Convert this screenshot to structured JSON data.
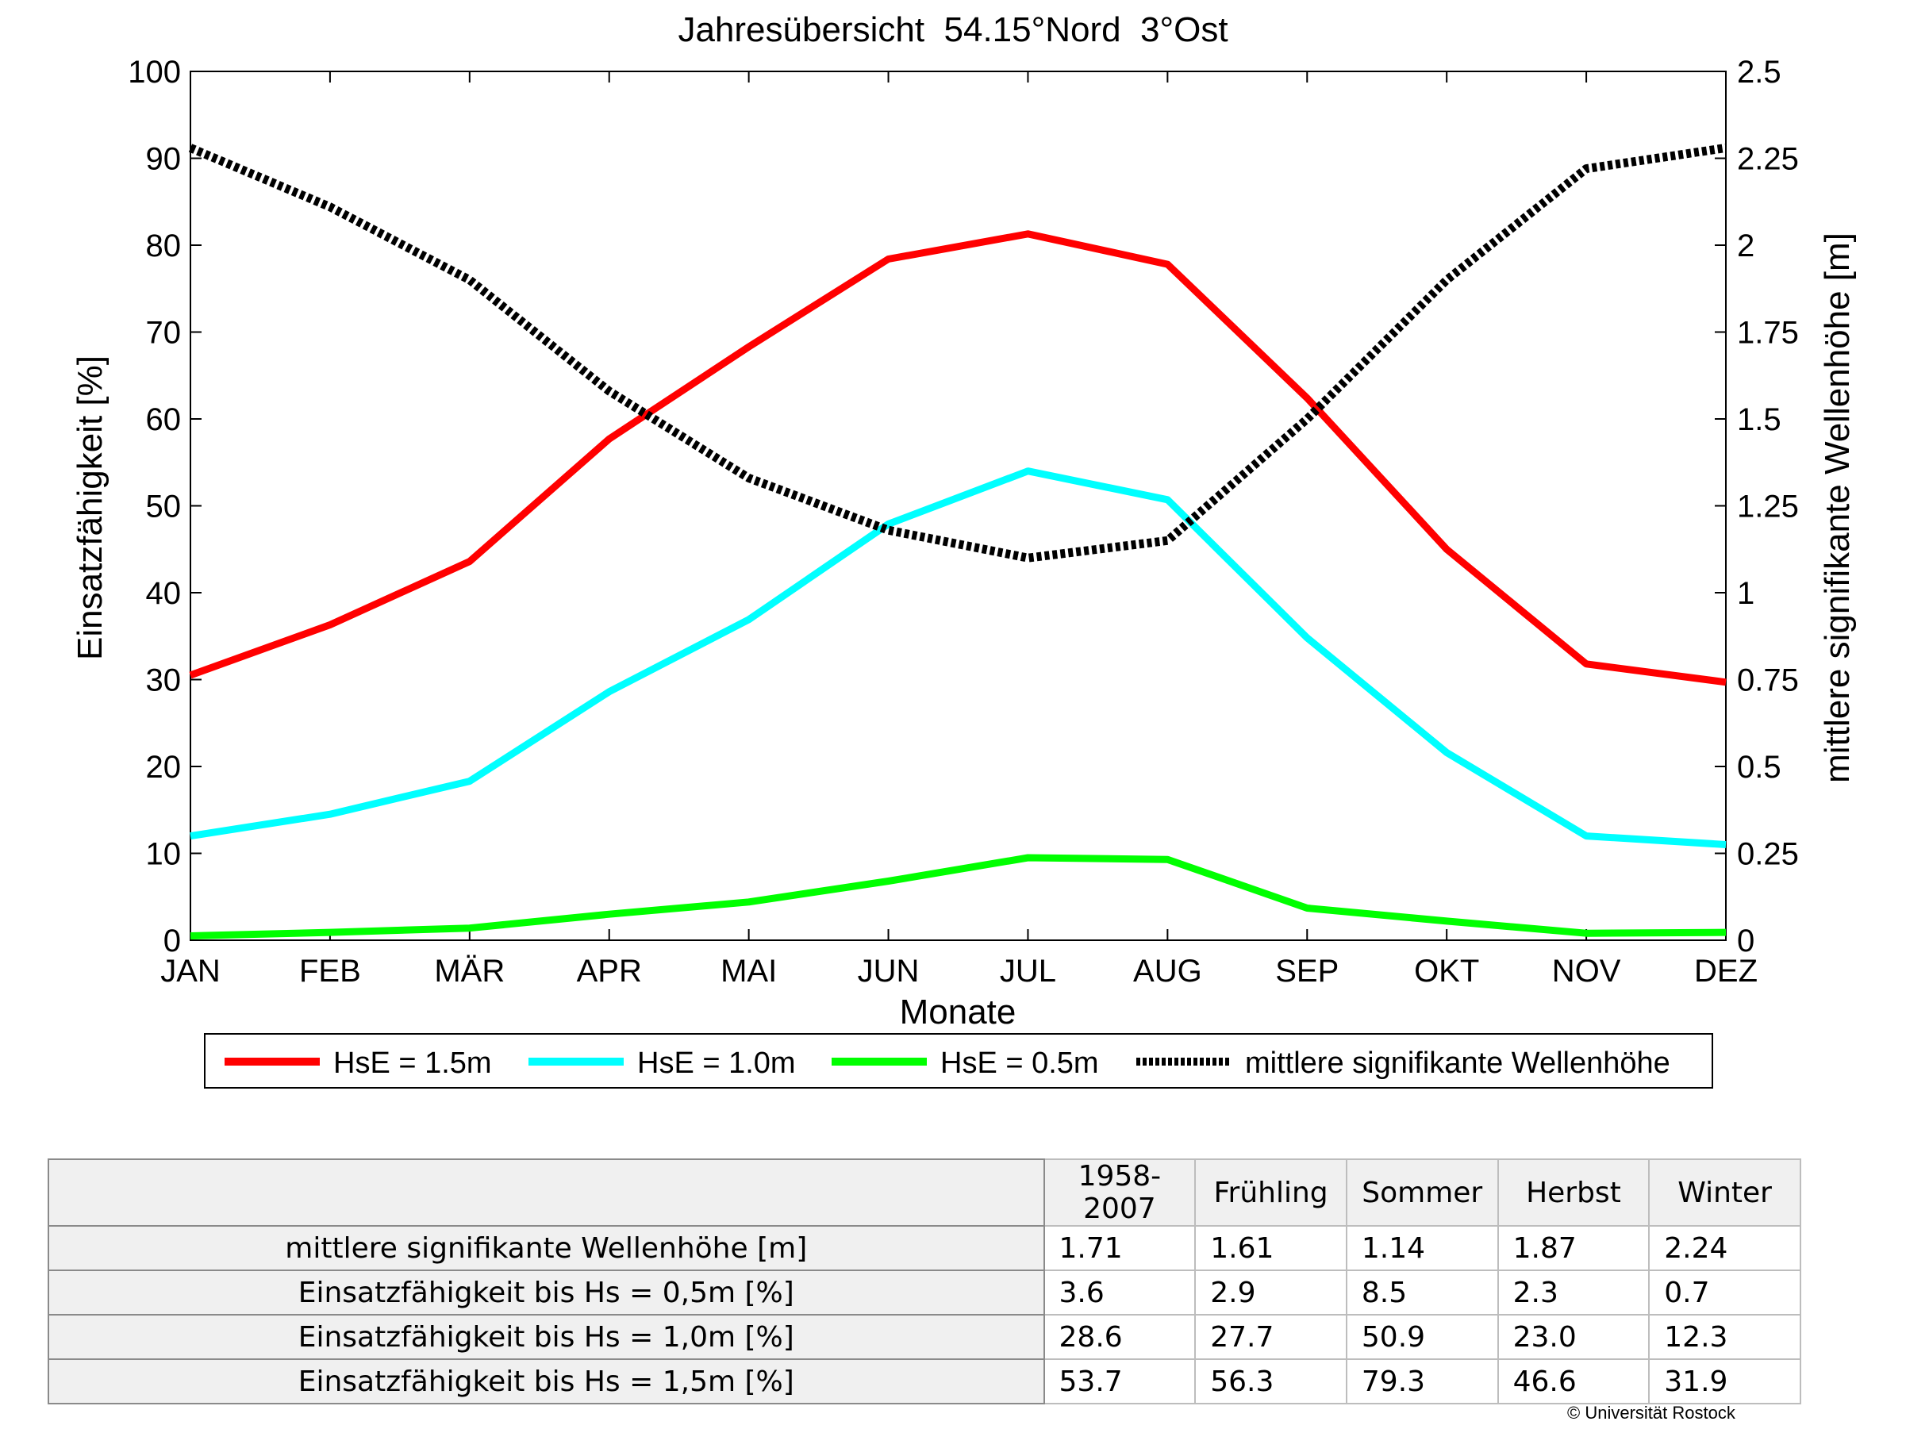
{
  "chart_data": {
    "type": "line",
    "title": "Jahresübersicht  54.15°Nord  3°Ost",
    "xlabel": "Monate",
    "ylabel": "Einsatzfähigkeit [%]",
    "y2label": "mittlere signifikante Wellenhöhe [m]",
    "categories": [
      "JAN",
      "FEB",
      "MÄR",
      "APR",
      "MAI",
      "JUN",
      "JUL",
      "AUG",
      "SEP",
      "OKT",
      "NOV",
      "DEZ"
    ],
    "ylim": [
      0,
      100
    ],
    "yticks": [
      "0",
      "10",
      "20",
      "30",
      "40",
      "50",
      "60",
      "70",
      "80",
      "90",
      "100"
    ],
    "y2lim": [
      0,
      2.5
    ],
    "y2ticks": [
      "0",
      "0.25",
      "0.5",
      "0.75",
      "1",
      "1.25",
      "1.5",
      "1.75",
      "2",
      "2.25",
      "2.5"
    ],
    "grid": false,
    "legend_position": "bottom",
    "series": [
      {
        "name": "HsE = 1.5m",
        "axis": "left",
        "color": "#ff0000",
        "style": "solid",
        "values": [
          30.5,
          36.3,
          43.6,
          57.7,
          68.3,
          78.4,
          81.3,
          77.8,
          62.4,
          45.0,
          31.8,
          29.7
        ]
      },
      {
        "name": "HsE = 1.0m",
        "axis": "left",
        "color": "#00ffff",
        "style": "solid",
        "values": [
          12.0,
          14.5,
          18.3,
          28.6,
          36.9,
          47.9,
          54.0,
          50.7,
          34.8,
          21.6,
          12.0,
          11.0
        ]
      },
      {
        "name": "HsE = 0.5m",
        "axis": "left",
        "color": "#00ff00",
        "style": "solid",
        "values": [
          0.5,
          0.9,
          1.4,
          3.0,
          4.4,
          6.8,
          9.5,
          9.3,
          3.7,
          2.2,
          0.8,
          0.9
        ]
      },
      {
        "name": "mittlere signifikante Wellenhöhe",
        "axis": "right",
        "color": "#000000",
        "style": "dotted",
        "values": [
          2.28,
          2.11,
          1.9,
          1.58,
          1.33,
          1.18,
          1.1,
          1.15,
          1.5,
          1.9,
          2.22,
          2.28
        ]
      }
    ]
  },
  "stats_table": {
    "columns": [
      "1958-2007",
      "Frühling",
      "Sommer",
      "Herbst",
      "Winter"
    ],
    "rows": [
      {
        "label": "mittlere signifikante Wellenhöhe [m]",
        "values": [
          "1.71",
          "1.61",
          "1.14",
          "1.87",
          "2.24"
        ]
      },
      {
        "label": "Einsatzfähigkeit bis Hs = 0,5m [%]",
        "values": [
          "3.6",
          "2.9",
          "8.5",
          "2.3",
          "0.7"
        ]
      },
      {
        "label": "Einsatzfähigkeit bis Hs = 1,0m [%]",
        "values": [
          "28.6",
          "27.7",
          "50.9",
          "23.0",
          "12.3"
        ]
      },
      {
        "label": "Einsatzfähigkeit bis Hs = 1,5m [%]",
        "values": [
          "53.7",
          "56.3",
          "79.3",
          "46.6",
          "31.9"
        ]
      }
    ]
  },
  "copyright": "© Universität Rostock"
}
